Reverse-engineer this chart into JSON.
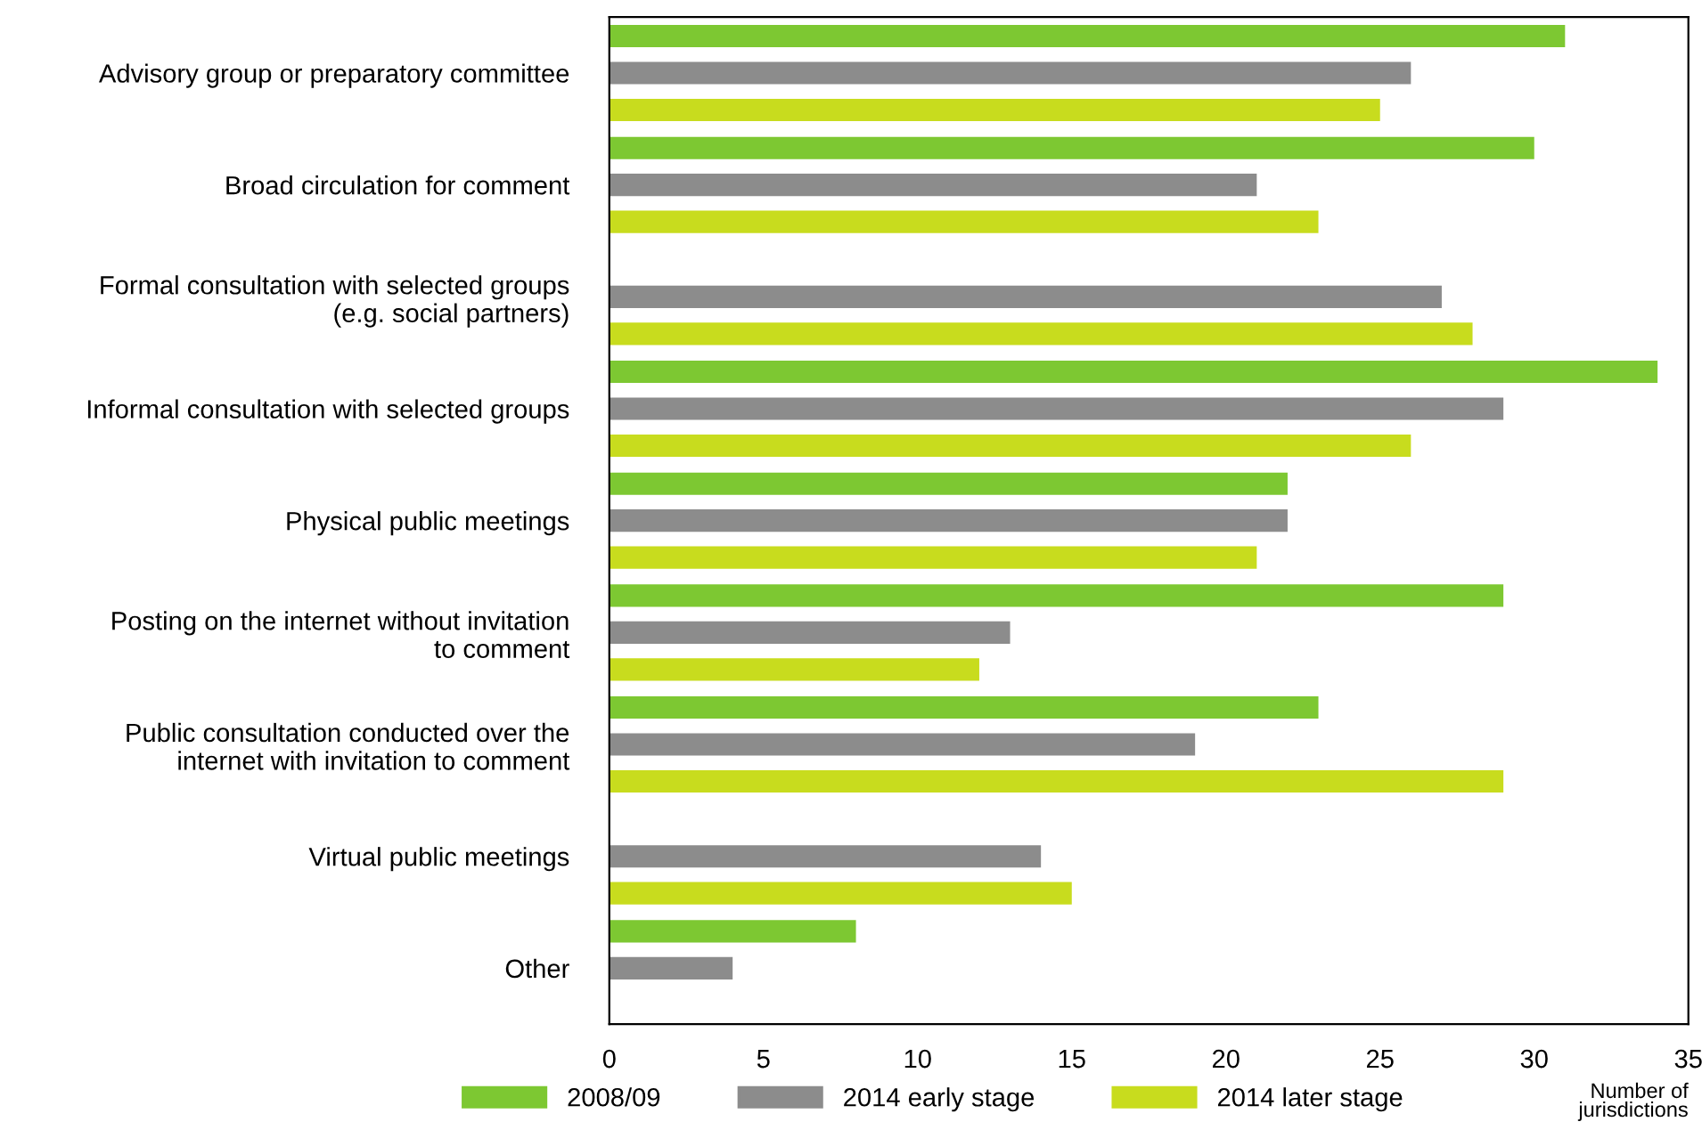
{
  "chart_data": {
    "type": "bar",
    "orientation": "horizontal",
    "xlabel": "Number of\njurisdictions",
    "categories": [
      "Advisory group or preparatory committee",
      "Broad circulation for comment",
      "Formal consultation with selected groups\n(e.g. social partners)",
      "Informal consultation with selected groups",
      "Physical public meetings",
      "Posting on the internet without invitation\nto comment",
      "Public consultation conducted over the\ninternet with invitation to comment",
      "Virtual public meetings",
      "Other"
    ],
    "series": [
      {
        "name": "2008/09",
        "color": "#7dc832",
        "values": [
          31,
          30,
          null,
          34,
          22,
          29,
          23,
          null,
          8
        ]
      },
      {
        "name": "2014 early stage",
        "color": "#8c8c8c",
        "values": [
          26,
          21,
          27,
          29,
          22,
          13,
          19,
          14,
          4
        ]
      },
      {
        "name": "2014 later stage",
        "color": "#c8dc1e",
        "values": [
          25,
          23,
          28,
          26,
          21,
          12,
          29,
          15,
          null
        ]
      }
    ],
    "xlim": [
      0,
      35
    ],
    "xticks": [
      0,
      5,
      10,
      15,
      20,
      25,
      30,
      35
    ],
    "grid": false,
    "legend": "bottom"
  }
}
